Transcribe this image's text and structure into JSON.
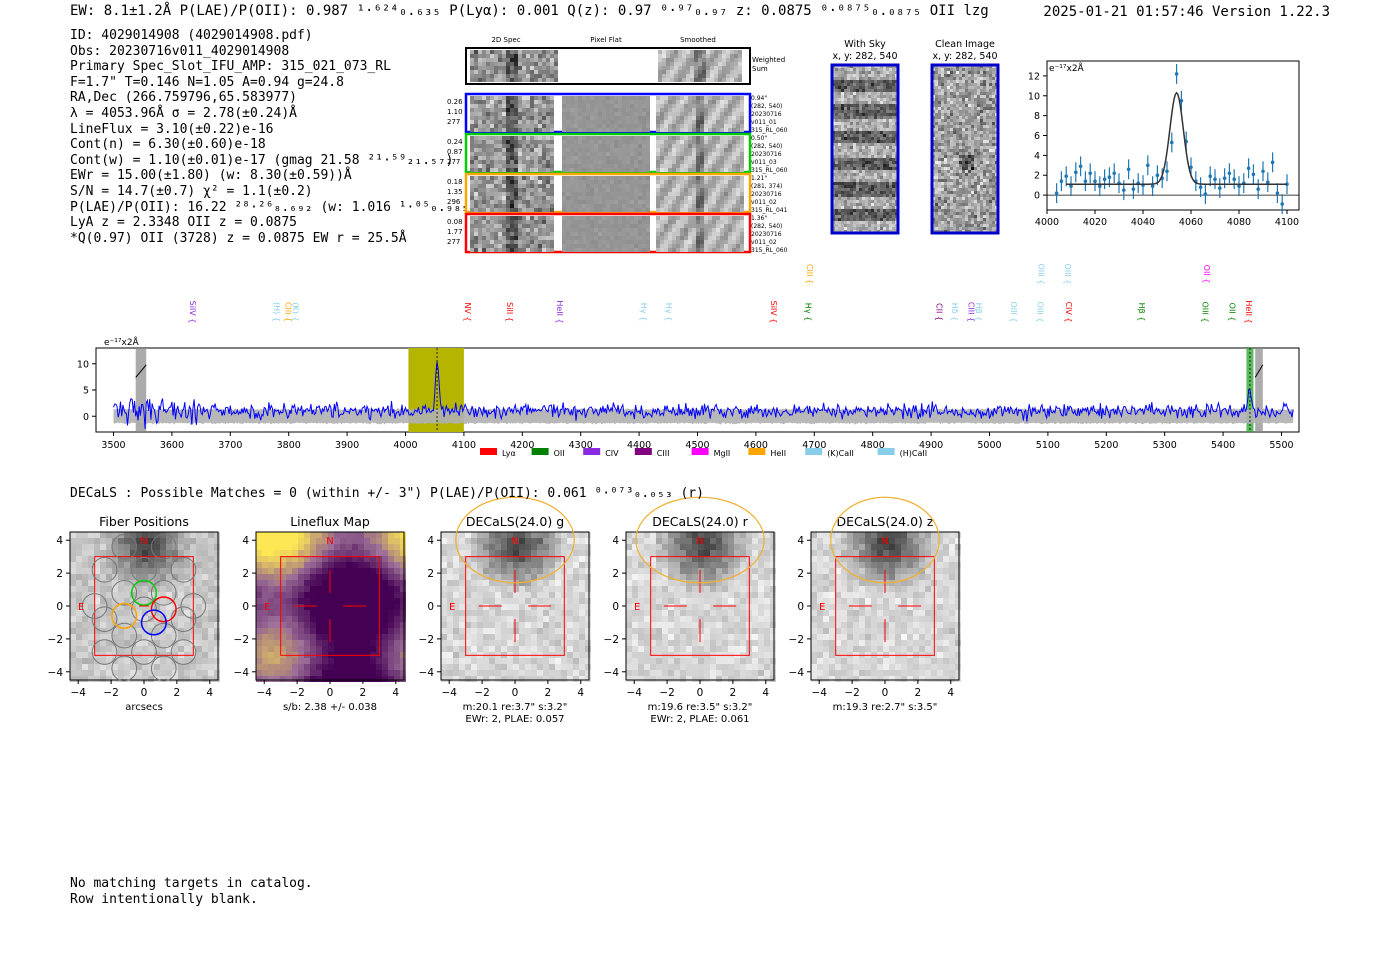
{
  "header": {
    "left": "EW: 8.1±1.2Å  P(LAE)/P(OII): 0.987 ¹·⁶²⁴₀.₆₃₅  P(Lyα): 0.001  Q(z): 0.97 ⁰·⁹⁷₀.₉₇  z: 0.0875 ⁰·⁰⁸⁷⁵₀.₀₈₇₅ OII   lzg",
    "right": "2025-01-21 01:57:46  Version 1.22.3"
  },
  "info_lines": [
    "ID: 4029014908 (4029014908.pdf)",
    "Obs: 20230716v011_4029014908",
    "Primary Spec_Slot_IFU_AMP: 315_021_073_RL",
    "F=1.7\"  T=0.146  N=1.05  A=0.94  g=24.8",
    "RA,Dec (266.759796,65.583977)",
    "λ = 4053.96Å  σ = 2.78(±0.24)Å",
    "LineFlux = 3.10(±0.22)e-16",
    "Cont(n) = 6.30(±0.60)e-18",
    "Cont(w) = 1.10(±0.01)e-17 (gmag 21.58 ²¹·⁵⁹₂₁.₅₇)",
    "EWr = 15.00(±1.80) (w: 8.30(±0.59))Å",
    "S/N = 14.7(±0.7)  χ² = 1.1(±0.2)",
    "P(LAE)/P(OII): 16.22 ²⁸·²⁶₈.₆₉₂ (w: 1.016 ¹·⁰⁵₀.₉₈₅)",
    "LyA z = 2.3348  OII z = 0.0875",
    "*Q(0.97) OII (3728) z = 0.0875  EW r = 25.5Å"
  ],
  "spec_cutouts": {
    "col_titles": [
      "2D Spec",
      "Pixel Flat",
      "Smoothed"
    ],
    "weighted_label": "Weighted Sum",
    "rows": [
      {
        "left": [
          "0.26",
          "1.10",
          "277"
        ],
        "right": [
          "0.94\"",
          "(282, 540)",
          "20230716",
          "v011_01",
          "315_RL_060"
        ],
        "color": "#0000ff"
      },
      {
        "left": [
          "0.24",
          "0.87",
          "277"
        ],
        "right": [
          "0.50\"",
          "(282, 540)",
          "20230716",
          "v011_03",
          "315_RL_060"
        ],
        "color": "#00cc00"
      },
      {
        "left": [
          "0.18",
          "1.35",
          "296"
        ],
        "right": [
          "1.21\"",
          "(281, 374)",
          "20230716",
          "v011_02",
          "315_RL_041"
        ],
        "color": "#ffa500"
      },
      {
        "left": [
          "0.08",
          "1.77",
          "277"
        ],
        "right": [
          "1.36\"",
          "(282, 540)",
          "20230716",
          "v011_02",
          "315_RL_060"
        ],
        "color": "#ff0000"
      }
    ]
  },
  "sky_panels": [
    {
      "title": "With Sky",
      "subtitle": "x, y: 282, 540"
    },
    {
      "title": "Clean Image",
      "subtitle": "x, y: 282, 540"
    }
  ],
  "colors": {
    "spectrum": "#0000ff",
    "error_band": "#b0b0b0",
    "highlight": "#b5b500",
    "oii_band": "#33aa33",
    "fit_line": "#333333",
    "points": "#1f77b4",
    "aperture": "#ff0000",
    "ellipse": "#f0b030"
  },
  "line_legend": [
    {
      "label": "Lyα",
      "color": "#ff0000"
    },
    {
      "label": "OII",
      "color": "#008000"
    },
    {
      "label": "CIV",
      "color": "#8a2be2"
    },
    {
      "label": "CIII",
      "color": "#800080"
    },
    {
      "label": "MgII",
      "color": "#ff00ff"
    },
    {
      "label": "HeII",
      "color": "#ffa500"
    },
    {
      "label": "(K)CaII",
      "color": "#87ceeb"
    },
    {
      "label": "(H)CaII",
      "color": "#87ceeb"
    }
  ],
  "line_markers": [
    {
      "label": "SiIV",
      "w": 3662,
      "color": "#8a2be2",
      "row": 0
    },
    {
      "label": "(H)",
      "w": 3806,
      "color": "#87ceeb",
      "row": 0
    },
    {
      "label": "CIII",
      "w": 3825,
      "color": "#ffa500",
      "row": 0
    },
    {
      "label": "(K)",
      "w": 3838,
      "color": "#87ceeb",
      "row": 0
    },
    {
      "label": "NV",
      "w": 4133,
      "color": "#ff0000",
      "row": 0
    },
    {
      "label": "SiII",
      "w": 4205,
      "color": "#ff0000",
      "row": 0
    },
    {
      "label": "HeII",
      "w": 4290,
      "color": "#8a2be2",
      "row": 0
    },
    {
      "label": "Hγ",
      "w": 4434,
      "color": "#87ceeb",
      "row": 0
    },
    {
      "label": "Hγ",
      "w": 4477,
      "color": "#87ceeb",
      "row": 0
    },
    {
      "label": "SiIV",
      "w": 4657,
      "color": "#ff0000",
      "row": 0
    },
    {
      "label": "Hγ",
      "w": 4716,
      "color": "#008000",
      "row": 0
    },
    {
      "label": "CIII",
      "w": 4718,
      "color": "#ffa500",
      "row": 1
    },
    {
      "label": "CII",
      "w": 4940,
      "color": "#800080",
      "row": 0
    },
    {
      "label": "Hδ",
      "w": 4967,
      "color": "#87ceeb",
      "row": 0
    },
    {
      "label": "CIII",
      "w": 4995,
      "color": "#8a2be2",
      "row": 0
    },
    {
      "label": "Hβ",
      "w": 5008,
      "color": "#87ceeb",
      "row": 0
    },
    {
      "label": "OIII",
      "w": 5068,
      "color": "#87ceeb",
      "row": 0
    },
    {
      "label": "OIII",
      "w": 5113,
      "color": "#87ceeb",
      "row": 0
    },
    {
      "label": "OIII",
      "w": 5115,
      "color": "#87ceeb",
      "row": 1
    },
    {
      "label": "CIV",
      "w": 5162,
      "color": "#ff0000",
      "row": 0
    },
    {
      "label": "OIII",
      "w": 5160,
      "color": "#87ceeb",
      "row": 1
    },
    {
      "label": "Hβ",
      "w": 5287,
      "color": "#008000",
      "row": 0
    },
    {
      "label": "OIII",
      "w": 5396,
      "color": "#008000",
      "row": 0
    },
    {
      "label": "OII",
      "w": 5398,
      "color": "#ff00ff",
      "row": 1
    },
    {
      "label": "OII",
      "w": 5442,
      "color": "#008000",
      "row": 0
    },
    {
      "label": "HeII",
      "w": 5470,
      "color": "#ff0000",
      "row": 0
    }
  ],
  "chart_data": [
    {
      "type": "scatter",
      "title": "",
      "unit_label": "e⁻¹⁷x2Å",
      "xlim": [
        4000,
        4105
      ],
      "ylim": [
        -1.5,
        13.5
      ],
      "xticks": [
        4000,
        4020,
        4040,
        4060,
        4080,
        4100
      ],
      "yticks": [
        0,
        2,
        4,
        6,
        8,
        10,
        12
      ],
      "points_x": [
        4004,
        4006,
        4008,
        4010,
        4012,
        4014,
        4016,
        4018,
        4020,
        4022,
        4024,
        4026,
        4028,
        4030,
        4032,
        4034,
        4036,
        4038,
        4040,
        4042,
        4044,
        4046,
        4048,
        4050,
        4052,
        4054,
        4056,
        4058,
        4060,
        4062,
        4064,
        4066,
        4068,
        4070,
        4072,
        4074,
        4076,
        4078,
        4080,
        4082,
        4084,
        4086,
        4088,
        4090,
        4092,
        4094,
        4096,
        4098,
        4100
      ],
      "points_y": [
        0.2,
        1.4,
        1.9,
        0.9,
        2.3,
        2.9,
        1.4,
        2.2,
        1.4,
        0.9,
        1.6,
        1.8,
        2.2,
        1.2,
        0.5,
        2.6,
        0.6,
        1.2,
        1.0,
        3.0,
        0.9,
        2.0,
        1.7,
        2.4,
        5.3,
        12.2,
        9.5,
        5.4,
        2.8,
        1.4,
        0.8,
        0.1,
        1.9,
        1.6,
        0.7,
        1.7,
        2.2,
        1.6,
        0.9,
        1.2,
        2.7,
        2.1,
        0.6,
        2.4,
        1.3,
        3.3,
        0.2,
        -0.9,
        1.1
      ],
      "fit": {
        "center": 4054,
        "sigma": 2.78,
        "amplitude": 9.2,
        "continuum": 1.1,
        "xmin": 4008,
        "xmax": 4100
      }
    },
    {
      "type": "line",
      "title": "",
      "unit_label": "e⁻¹⁷x2Å",
      "xlim": [
        3470,
        5530
      ],
      "ylim": [
        -3,
        13
      ],
      "xticks": [
        3500,
        3600,
        3700,
        3800,
        3900,
        4000,
        4100,
        4200,
        4300,
        4400,
        4500,
        4600,
        4700,
        4800,
        4900,
        5000,
        5100,
        5200,
        5300,
        5400,
        5500
      ],
      "yticks": [
        0,
        5,
        10
      ],
      "highlight_range": [
        4005,
        4100
      ],
      "emission_center": 4054,
      "oii_range": [
        5440,
        5452
      ],
      "masked_ranges": [
        [
          3538,
          3556
        ],
        [
          5455,
          5468
        ]
      ],
      "series": [
        {
          "values_seed": 7,
          "amplitude": 1.1,
          "start": 3500,
          "end": 5520,
          "step": 2
        }
      ]
    }
  ],
  "decals": {
    "summary": "DECaLS : Possible Matches = 0 (within +/- 3\")  P(LAE)/P(OII): 0.061 ⁰·⁰⁷³₀.₀₅₃ (r)",
    "panels": [
      {
        "title": "Fiber Positions",
        "captions": [
          "arcsecs"
        ],
        "kind": "fibers"
      },
      {
        "title": "Lineflux Map",
        "captions": [
          "s/b: 2.38 +/- 0.038"
        ],
        "kind": "flux"
      },
      {
        "title": "DECaLS(24.0) g",
        "captions": [
          "m:20.1  re:3.7\"  s:3.2\"",
          "EWr: 2, PLAE: 0.057"
        ],
        "kind": "cutout"
      },
      {
        "title": "DECaLS(24.0) r",
        "captions": [
          "m:19.6  re:3.5\"  s:3.2\"",
          "EWr: 2, PLAE: 0.061"
        ],
        "kind": "cutout"
      },
      {
        "title": "DECaLS(24.0) z",
        "captions": [
          "m:19.3  re:2.7\"  s:3.5\""
        ],
        "kind": "cutout"
      }
    ],
    "axis_ticks": [
      "−4",
      "−2",
      "0",
      "2",
      "4"
    ],
    "north": "N",
    "east": "E"
  },
  "notes": [
    "No matching targets in catalog.",
    "Row intentionally blank."
  ]
}
